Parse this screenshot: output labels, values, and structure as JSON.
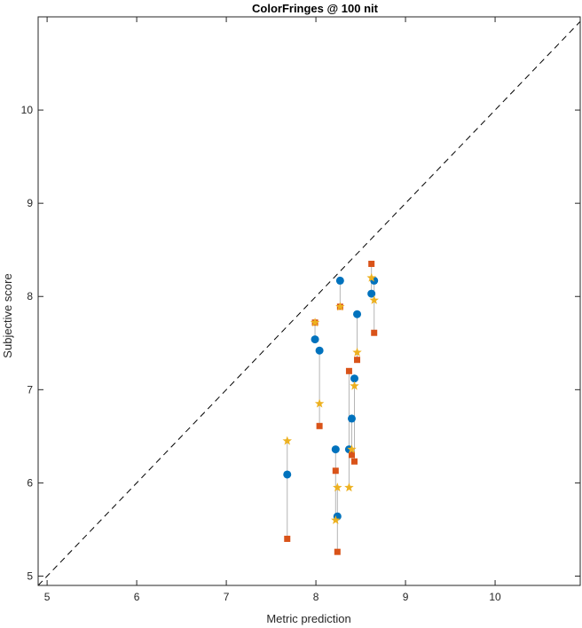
{
  "chart_data": {
    "type": "scatter",
    "title": "ColorFringes @ 100 nit",
    "xlabel": "Metric prediction",
    "ylabel": "Subjective score",
    "xlim": [
      4.9,
      10.95
    ],
    "ylim": [
      4.9,
      11.0
    ],
    "xticks": [
      5,
      6,
      7,
      8,
      9,
      10
    ],
    "yticks": [
      5,
      6,
      7,
      8,
      9,
      10
    ],
    "grid": false,
    "diagonal_reference": true,
    "series": [
      {
        "marker": "circle",
        "color": "#0072BD",
        "points": [
          [
            7.68,
            6.09
          ],
          [
            7.99,
            7.54
          ],
          [
            8.04,
            7.42
          ],
          [
            8.22,
            6.36
          ],
          [
            8.24,
            5.64
          ],
          [
            8.27,
            8.17
          ],
          [
            8.37,
            6.36
          ],
          [
            8.4,
            6.69
          ],
          [
            8.43,
            7.12
          ],
          [
            8.46,
            7.81
          ],
          [
            8.62,
            8.03
          ],
          [
            8.65,
            8.17
          ]
        ]
      },
      {
        "marker": "square",
        "color": "#D95319",
        "points": [
          [
            7.68,
            5.4
          ],
          [
            7.99,
            7.72
          ],
          [
            8.04,
            6.61
          ],
          [
            8.22,
            6.13
          ],
          [
            8.24,
            5.26
          ],
          [
            8.27,
            7.89
          ],
          [
            8.37,
            7.2
          ],
          [
            8.4,
            6.3
          ],
          [
            8.43,
            6.23
          ],
          [
            8.46,
            7.32
          ],
          [
            8.62,
            8.35
          ],
          [
            8.65,
            7.61
          ]
        ]
      },
      {
        "marker": "star",
        "color": "#EDB120",
        "points": [
          [
            7.68,
            6.45
          ],
          [
            7.99,
            7.72
          ],
          [
            8.04,
            6.85
          ],
          [
            8.22,
            5.6
          ],
          [
            8.24,
            5.95
          ],
          [
            8.27,
            7.89
          ],
          [
            8.37,
            5.95
          ],
          [
            8.4,
            6.36
          ],
          [
            8.43,
            7.04
          ],
          [
            8.46,
            7.4
          ],
          [
            8.62,
            8.2
          ],
          [
            8.65,
            7.96
          ]
        ]
      }
    ]
  }
}
